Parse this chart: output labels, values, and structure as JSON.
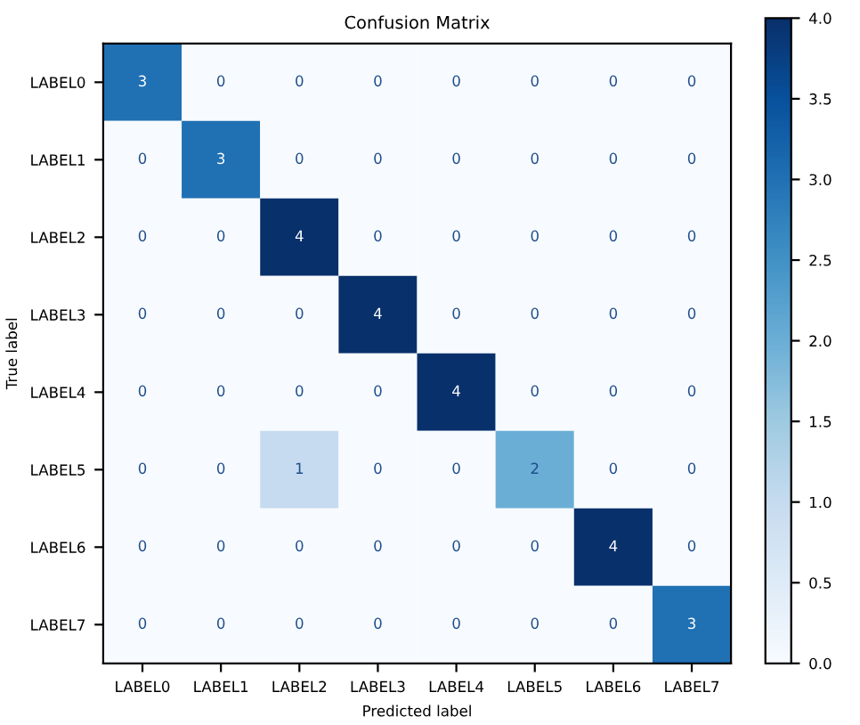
{
  "chart_data": {
    "type": "heatmap",
    "title": "Confusion Matrix",
    "xlabel": "Predicted label",
    "ylabel": "True label",
    "categories": [
      "LABEL0",
      "LABEL1",
      "LABEL2",
      "LABEL3",
      "LABEL4",
      "LABEL5",
      "LABEL6",
      "LABEL7"
    ],
    "y_categories": [
      "LABEL0",
      "LABEL1",
      "LABEL2",
      "LABEL3",
      "LABEL4",
      "LABEL5",
      "LABEL6",
      "LABEL7"
    ],
    "cells": [
      [
        3,
        0,
        0,
        0,
        0,
        0,
        0,
        0
      ],
      [
        0,
        3,
        0,
        0,
        0,
        0,
        0,
        0
      ],
      [
        0,
        0,
        4,
        0,
        0,
        0,
        0,
        0
      ],
      [
        0,
        0,
        0,
        4,
        0,
        0,
        0,
        0
      ],
      [
        0,
        0,
        0,
        0,
        4,
        0,
        0,
        0
      ],
      [
        0,
        0,
        1,
        0,
        0,
        2,
        0,
        0
      ],
      [
        0,
        0,
        0,
        0,
        0,
        0,
        4,
        0
      ],
      [
        0,
        0,
        0,
        0,
        0,
        0,
        0,
        3
      ]
    ],
    "clim": [
      0,
      4
    ],
    "cticks": [
      {
        "value": 0,
        "label": "0.0"
      },
      0.5,
      {
        "value": 1,
        "label": "1.0"
      },
      1.5,
      {
        "value": 2,
        "label": "2.0"
      },
      2.5,
      {
        "value": 3,
        "label": "3.0"
      },
      3.5,
      {
        "value": 4,
        "label": "4.0"
      }
    ],
    "data_labels": true
  }
}
